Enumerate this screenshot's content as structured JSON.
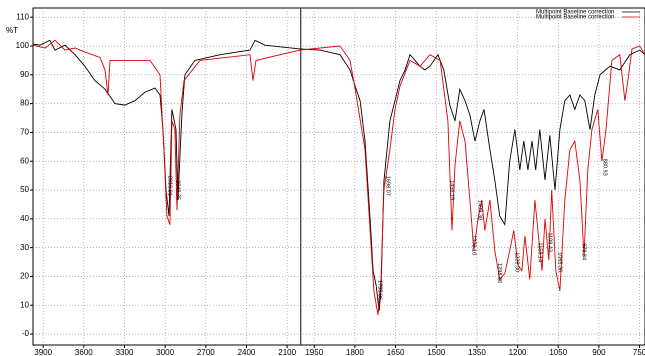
{
  "chart_data": {
    "type": "line",
    "y_label": "%T",
    "xlim": [
      3975,
      730
    ],
    "ylim": [
      -3.8,
      113.2
    ],
    "axis_break": 2000,
    "xticks": [
      3900,
      3600,
      3300,
      3000,
      2700,
      2400,
      2100,
      1950,
      1800,
      1650,
      1500,
      1350,
      1200,
      1050,
      900,
      750
    ],
    "yticks": [
      110,
      100,
      90,
      80,
      70,
      60,
      50,
      40,
      30,
      20,
      10,
      {
        "value": 0,
        "label": "-0"
      }
    ],
    "grid": true,
    "legend": "top-right",
    "series": [
      {
        "name": "Multipoint Baseline correction",
        "color": "#000000",
        "x": [
          3975,
          3923,
          3850,
          3813,
          3739,
          3665,
          3592,
          3518,
          3444,
          3370,
          3297,
          3223,
          3149,
          3075,
          3038,
          3016,
          2994,
          2972,
          2950,
          2920,
          2906,
          2876,
          2854,
          2780,
          2595,
          2374,
          2337,
          2264,
          2005,
          1929,
          1855,
          1818,
          1799,
          1781,
          1763,
          1744,
          1733,
          1722,
          1711,
          1704,
          1693,
          1671,
          1652,
          1634,
          1615,
          1597,
          1578,
          1560,
          1542,
          1523,
          1494,
          1472,
          1450,
          1431,
          1413,
          1394,
          1376,
          1357,
          1339,
          1324,
          1302,
          1284,
          1266,
          1247,
          1229,
          1210,
          1192,
          1177,
          1162,
          1147,
          1133,
          1118,
          1099,
          1081,
          1062,
          1044,
          1026,
          1007,
          989,
          970,
          952,
          933,
          915,
          896,
          859,
          823,
          786,
          749,
          730
        ],
        "values": [
          100.7,
          100.3,
          102,
          98.6,
          100.3,
          97,
          93,
          88,
          85,
          80,
          79.5,
          81,
          84,
          85.4,
          83,
          71,
          50,
          41,
          78,
          71,
          46.5,
          77,
          90,
          95,
          97,
          98.6,
          102,
          100.3,
          99,
          98.6,
          97,
          91.7,
          86,
          81,
          67,
          40,
          22,
          17,
          8,
          15,
          53,
          74,
          81,
          88,
          91.7,
          97,
          95,
          93,
          91.7,
          93,
          97,
          91.7,
          79.5,
          74,
          85,
          81,
          76,
          67,
          74,
          78,
          64,
          53.5,
          41,
          38,
          60,
          71,
          57,
          67,
          57,
          67,
          57,
          71,
          53.5,
          69,
          50,
          71,
          81,
          83,
          78,
          83,
          81,
          71,
          83,
          90,
          93,
          91.7,
          97,
          98.6,
          97
        ]
      },
      {
        "name": "Multipoint Baseline correction",
        "color": "#e00000",
        "x": [
          3975,
          3886,
          3813,
          3739,
          3665,
          3592,
          3481,
          3444,
          3422,
          3407,
          3112,
          3038,
          3009,
          2987,
          2965,
          2950,
          2928,
          2913,
          2891,
          2861,
          2743,
          2374,
          2352,
          2330,
          2005,
          1855,
          1818,
          1799,
          1763,
          1744,
          1730,
          1715,
          1704,
          1693,
          1671,
          1652,
          1634,
          1597,
          1560,
          1523,
          1486,
          1457,
          1442,
          1431,
          1413,
          1394,
          1376,
          1361,
          1346,
          1332,
          1321,
          1302,
          1284,
          1266,
          1247,
          1229,
          1214,
          1199,
          1184,
          1173,
          1155,
          1136,
          1125,
          1110,
          1099,
          1085,
          1074,
          1059,
          1044,
          1026,
          1007,
          989,
          970,
          955,
          941,
          926,
          904,
          889,
          874,
          852,
          823,
          804,
          793,
          778,
          749,
          730
        ],
        "values": [
          100.3,
          99.3,
          102,
          98.6,
          99.3,
          97.9,
          96,
          91.7,
          83,
          95,
          95,
          90,
          64,
          41,
          38,
          74,
          71,
          43,
          76,
          88,
          95,
          97,
          88,
          95,
          98.6,
          100,
          95,
          85,
          64,
          36,
          15,
          6.6,
          19,
          50,
          64,
          78,
          86,
          95,
          93,
          97,
          95,
          74,
          36,
          58.7,
          74,
          67,
          46.5,
          29,
          40,
          46.5,
          36,
          46.5,
          29,
          19,
          21,
          29,
          36,
          24,
          22,
          34,
          19,
          46.5,
          36,
          22,
          40,
          25.7,
          50,
          22,
          15,
          46.5,
          64,
          67,
          53.5,
          27,
          57,
          71,
          78,
          60,
          71,
          95,
          97,
          81,
          88,
          99,
          100,
          97
        ]
      }
    ],
    "annotations": [
      {
        "x": 2965,
        "y": 48,
        "label": "2916.91"
      },
      {
        "x": 2906,
        "y": 46.5,
        "label": "2848.35"
      },
      {
        "x": 1708,
        "y": 11.8,
        "label": "1735.06"
      },
      {
        "x": 1678,
        "y": 48,
        "label": "1698.07"
      },
      {
        "x": 1442,
        "y": 46.5,
        "label": "1456.19"
      },
      {
        "x": 1339,
        "y": 39.6,
        "label": "1409.30"
      },
      {
        "x": 1361,
        "y": 27.4,
        "label": "1370.10"
      },
      {
        "x": 1266,
        "y": 17.7,
        "label": "1298.86"
      },
      {
        "x": 1203,
        "y": 21.5,
        "label": "1228.30"
      },
      {
        "x": 1118,
        "y": 25,
        "label": "1158.14"
      },
      {
        "x": 1081,
        "y": 28.5,
        "label": "1109.43"
      },
      {
        "x": 1044,
        "y": 21.5,
        "label": "1065.36"
      },
      {
        "x": 955,
        "y": 25.7,
        "label": "979.84"
      },
      {
        "x": 878,
        "y": 55,
        "label": "880.93"
      }
    ]
  }
}
